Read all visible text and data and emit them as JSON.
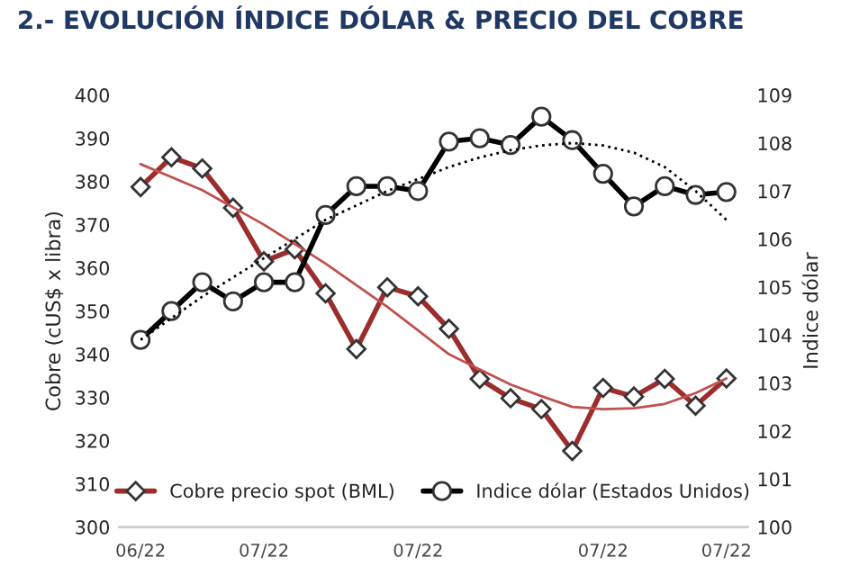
{
  "chart_data": {
    "type": "line",
    "title": "2.- EVOLUCIÓN ÍNDICE DÓLAR & PRECIO DEL COBRE",
    "ylabel": "Cobre (cUS$ x libra)",
    "y2label": "Indice dólar",
    "categories": [
      "06/22",
      null,
      null,
      null,
      "07/22",
      null,
      null,
      null,
      null,
      "07/22",
      null,
      null,
      null,
      null,
      null,
      "07/22",
      null,
      null,
      null,
      "07/22"
    ],
    "series": [
      {
        "name": "Cobre precio spot (BML)",
        "color": "#9b2d2d",
        "marker": "diamond",
        "values": [
          378.7,
          385.6,
          383,
          373.9,
          361.5,
          364.3,
          354.1,
          341.2,
          355.5,
          353.4,
          345.9,
          334.3,
          329.8,
          327.3,
          317.6,
          332.2,
          330.2,
          334.3,
          328.1,
          334.4
        ]
      },
      {
        "name": "Indice dólar (Estados Unidos)",
        "color": "#000000",
        "marker": "circle",
        "axis": "y2",
        "values": [
          103.9,
          104.5,
          105.1,
          104.7,
          105.1,
          105.1,
          106.5,
          107.1,
          107.1,
          107.0,
          108.03,
          108.1,
          107.96,
          108.55,
          108.06,
          107.36,
          106.68,
          107.1,
          106.92,
          106.98
        ]
      },
      {
        "color": "#c0504d",
        "marker": "none",
        "values": [
          384,
          381,
          378,
          374,
          370,
          365.5,
          361,
          356,
          351,
          345.5,
          340,
          336.5,
          333,
          330.3,
          327.8,
          327.3,
          327.5,
          328.5,
          331,
          334.4
        ]
      },
      {
        "color": "#000000",
        "marker": "none",
        "line_style": "dotted",
        "axis": "y2",
        "values": [
          103.9,
          104.35,
          104.8,
          105.2,
          105.6,
          106.0,
          106.4,
          106.7,
          107.0,
          107.25,
          107.5,
          107.7,
          107.85,
          107.95,
          108.0,
          107.95,
          107.8,
          107.5,
          107.0,
          106.4
        ]
      }
    ],
    "ylim": [
      300,
      400
    ],
    "yticks": [
      300,
      310,
      320,
      330,
      340,
      350,
      360,
      370,
      380,
      390,
      400
    ],
    "y2lim": [
      100,
      109
    ],
    "y2ticks": [
      100,
      101,
      102,
      103,
      104,
      105,
      106,
      107,
      108,
      109
    ],
    "legend": "bottom",
    "grid": false
  }
}
